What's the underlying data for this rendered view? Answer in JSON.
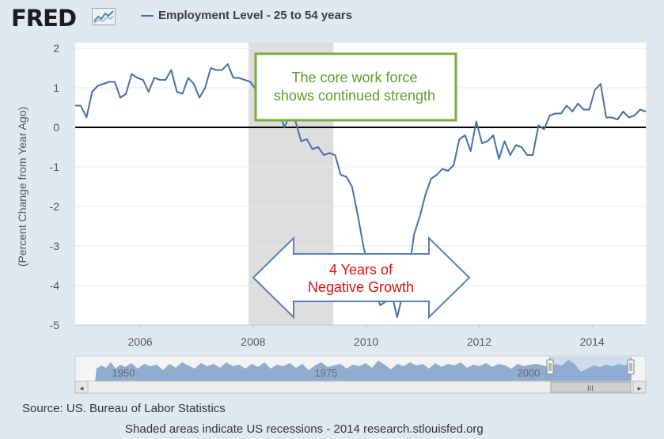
{
  "brand": {
    "logo_text": "FRED"
  },
  "chart_data": {
    "type": "line",
    "title": "Employment Level - 25 to 54 years",
    "ylabel": "(Percent Change from Year Ago)",
    "xlabel": "",
    "xlim": [
      2004.85,
      2014.95
    ],
    "ylim": [
      -5,
      2
    ],
    "xticks": [
      2006,
      2008,
      2010,
      2012,
      2014
    ],
    "yticks": [
      2,
      1,
      0,
      -1,
      -2,
      -3,
      -4,
      -5
    ],
    "recession": {
      "start": 2007.92,
      "end": 2009.42
    },
    "series": [
      {
        "name": "Employment Level - 25 to 54 years",
        "color": "#4572a7",
        "points": [
          [
            2004.85,
            0.55
          ],
          [
            2004.95,
            0.55
          ],
          [
            2005.05,
            0.25
          ],
          [
            2005.15,
            0.9
          ],
          [
            2005.25,
            1.05
          ],
          [
            2005.35,
            1.1
          ],
          [
            2005.45,
            1.15
          ],
          [
            2005.55,
            1.15
          ],
          [
            2005.65,
            0.75
          ],
          [
            2005.75,
            0.85
          ],
          [
            2005.85,
            1.35
          ],
          [
            2005.95,
            1.25
          ],
          [
            2006.05,
            1.2
          ],
          [
            2006.15,
            0.9
          ],
          [
            2006.25,
            1.25
          ],
          [
            2006.35,
            1.2
          ],
          [
            2006.45,
            1.2
          ],
          [
            2006.55,
            1.45
          ],
          [
            2006.65,
            0.9
          ],
          [
            2006.75,
            0.85
          ],
          [
            2006.85,
            1.25
          ],
          [
            2006.95,
            1.1
          ],
          [
            2007.05,
            0.75
          ],
          [
            2007.15,
            1.0
          ],
          [
            2007.25,
            1.5
          ],
          [
            2007.35,
            1.45
          ],
          [
            2007.45,
            1.45
          ],
          [
            2007.55,
            1.6
          ],
          [
            2007.65,
            1.25
          ],
          [
            2007.75,
            1.25
          ],
          [
            2007.85,
            1.2
          ],
          [
            2007.95,
            1.15
          ],
          [
            2008.05,
            0.95
          ],
          [
            2008.15,
            0.85
          ],
          [
            2008.25,
            0.65
          ],
          [
            2008.35,
            0.7
          ],
          [
            2008.45,
            0.55
          ],
          [
            2008.55,
            0.0
          ],
          [
            2008.65,
            0.3
          ],
          [
            2008.75,
            0.15
          ],
          [
            2008.85,
            -0.35
          ],
          [
            2008.95,
            -0.3
          ],
          [
            2009.05,
            -0.55
          ],
          [
            2009.15,
            -0.5
          ],
          [
            2009.25,
            -0.7
          ],
          [
            2009.35,
            -0.65
          ],
          [
            2009.45,
            -0.7
          ],
          [
            2009.55,
            -1.2
          ],
          [
            2009.65,
            -1.25
          ],
          [
            2009.75,
            -1.5
          ],
          [
            2009.85,
            -2.2
          ],
          [
            2009.95,
            -3.0
          ],
          [
            2010.05,
            -3.6
          ],
          [
            2010.15,
            -4.1
          ],
          [
            2010.25,
            -4.5
          ],
          [
            2010.35,
            -4.4
          ],
          [
            2010.45,
            -4.2
          ],
          [
            2010.55,
            -4.8
          ],
          [
            2010.65,
            -4.2
          ],
          [
            2010.75,
            -3.7
          ],
          [
            2010.85,
            -2.7
          ],
          [
            2010.95,
            -2.25
          ],
          [
            2011.05,
            -1.7
          ],
          [
            2011.15,
            -1.3
          ],
          [
            2011.25,
            -1.2
          ],
          [
            2011.35,
            -1.05
          ],
          [
            2011.45,
            -1.1
          ],
          [
            2011.55,
            -0.95
          ],
          [
            2011.65,
            -0.3
          ],
          [
            2011.75,
            -0.2
          ],
          [
            2011.85,
            -0.6
          ],
          [
            2011.95,
            0.15
          ],
          [
            2012.05,
            -0.4
          ],
          [
            2012.15,
            -0.35
          ],
          [
            2012.25,
            -0.2
          ],
          [
            2012.35,
            -0.8
          ],
          [
            2012.45,
            -0.35
          ],
          [
            2012.55,
            -0.7
          ],
          [
            2012.65,
            -0.45
          ],
          [
            2012.75,
            -0.5
          ],
          [
            2012.85,
            -0.7
          ],
          [
            2012.95,
            -0.7
          ],
          [
            2013.05,
            0.05
          ],
          [
            2013.15,
            -0.05
          ],
          [
            2013.25,
            0.3
          ],
          [
            2013.35,
            0.35
          ],
          [
            2013.45,
            0.35
          ],
          [
            2013.55,
            0.55
          ],
          [
            2013.65,
            0.4
          ],
          [
            2013.75,
            0.6
          ],
          [
            2013.85,
            0.45
          ],
          [
            2013.95,
            0.45
          ],
          [
            2014.05,
            0.95
          ],
          [
            2014.15,
            1.1
          ],
          [
            2014.25,
            0.25
          ],
          [
            2014.35,
            0.25
          ],
          [
            2014.45,
            0.2
          ],
          [
            2014.55,
            0.4
          ],
          [
            2014.65,
            0.25
          ],
          [
            2014.75,
            0.3
          ],
          [
            2014.85,
            0.45
          ],
          [
            2014.95,
            0.4
          ]
        ]
      }
    ]
  },
  "annotations": {
    "strength_line1": "The core work force",
    "strength_line2": "shows continued strength",
    "negative_line1": "4 Years of",
    "negative_line2": "Negative Growth"
  },
  "navigator": {
    "labels": [
      "1950",
      "1975",
      "2000"
    ],
    "scroll_left": "◂",
    "scroll_right": "▸",
    "scroll_grip": "III"
  },
  "footer": {
    "source": "Source: US. Bureau of Labor Statistics",
    "note": "Shaded areas indicate US recessions - 2014 research.stlouisfed.org"
  },
  "colors": {
    "series": "#4572a7",
    "green": "#5e9e2e",
    "red": "#dd1111",
    "recession": "#dedede"
  }
}
